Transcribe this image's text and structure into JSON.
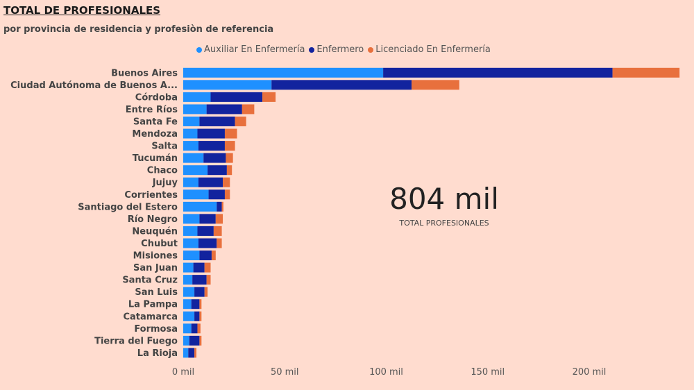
{
  "header": {
    "title": "TOTAL DE PROFESIONALES",
    "subtitle": "por provincia de residencia y profesiòn de referencia"
  },
  "kpi": {
    "value": "804 mil",
    "label": "TOTAL PROFESIONALES"
  },
  "chart_data": {
    "type": "bar",
    "orientation": "horizontal",
    "stacked": true,
    "categories": [
      "Buenos Aires",
      "Ciudad Autónoma de Buenos A...",
      "Córdoba",
      "Entre Ríos",
      "Santa Fe",
      "Mendoza",
      "Salta",
      "Tucumán",
      "Chaco",
      "Jujuy",
      "Corrientes",
      "Santiago del Estero",
      "Río Negro",
      "Neuquén",
      "Chubut",
      "Misiones",
      "San Juan",
      "Santa Cruz",
      "San Luis",
      "La Pampa",
      "Catamarca",
      "Formosa",
      "Tierra del Fuego",
      "La Rioja"
    ],
    "series": [
      {
        "name": "Auxiliar En Enfermería",
        "color": "#1E90FF",
        "values": [
          98.5,
          43.5,
          13.5,
          11.5,
          8,
          7,
          7.5,
          10,
          12,
          7.5,
          12.5,
          16.5,
          8,
          7,
          7.5,
          8,
          5,
          4.5,
          5.5,
          4,
          5.5,
          4,
          3,
          2.5
        ]
      },
      {
        "name": "Enfermero",
        "color": "#12239E",
        "values": [
          113,
          69,
          25.5,
          17.5,
          17.5,
          13.5,
          13,
          11,
          9.5,
          12,
          8,
          2.5,
          8,
          8,
          9,
          6,
          5.5,
          7,
          5,
          4,
          2.5,
          3,
          5,
          3
        ]
      },
      {
        "name": "Licenciado En Enfermería",
        "color": "#E8703D",
        "values": [
          33,
          23.5,
          6.5,
          6,
          5.5,
          6,
          5,
          3.5,
          2.5,
          3.5,
          2.5,
          0.8,
          3.5,
          4,
          2.5,
          2,
          3,
          2,
          1.5,
          1,
          1,
          1.5,
          1,
          1
        ]
      }
    ],
    "xaxis": {
      "ticks": [
        0,
        50,
        100,
        150,
        200
      ],
      "tick_labels": [
        "0 mil",
        "50 mil",
        "100 mil",
        "150 mil",
        "200 mil"
      ],
      "range": [
        0,
        245
      ]
    },
    "legend_position": "top",
    "grid": false
  }
}
